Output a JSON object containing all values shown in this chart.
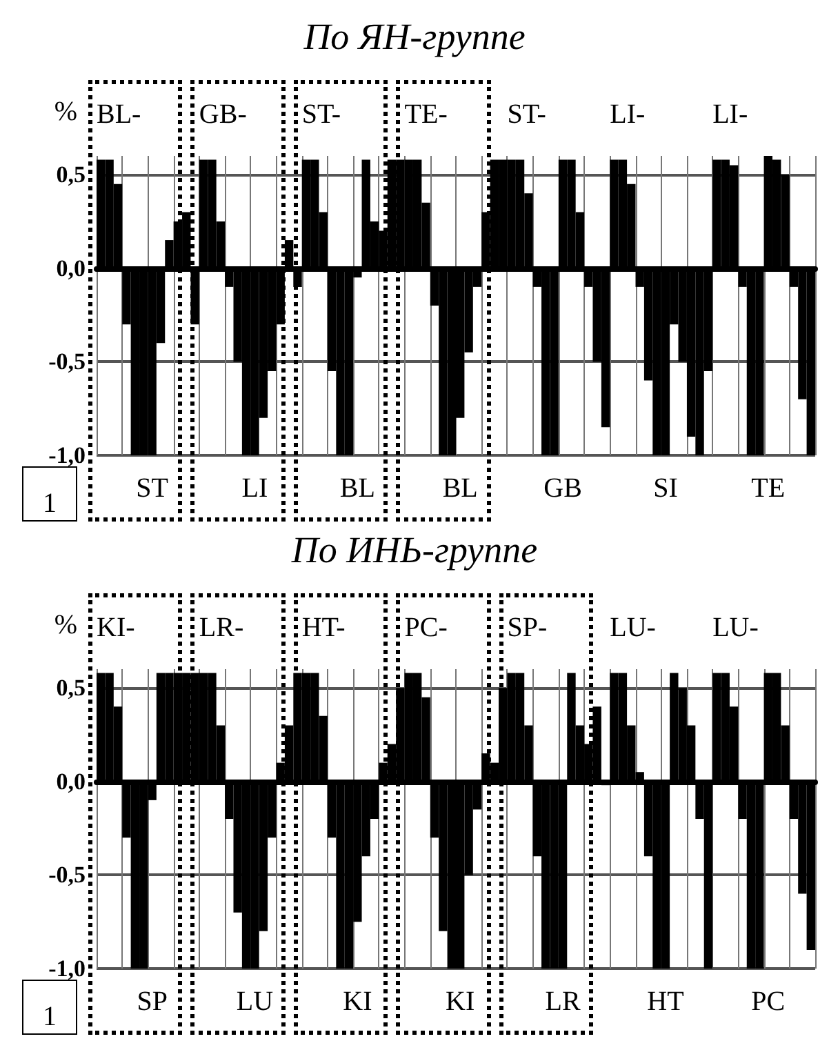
{
  "chart_data": [
    {
      "type": "bar",
      "title": "По ЯН-группе",
      "ylabel": "%",
      "categories": [
        null,
        null,
        null,
        null,
        null,
        null,
        "ST",
        null,
        null,
        null,
        null,
        null,
        null,
        null,
        null,
        null,
        null,
        null,
        "LI",
        null,
        null,
        null,
        null,
        null,
        null,
        null,
        null,
        null,
        null,
        null,
        "BL",
        null,
        null,
        null,
        null,
        null,
        null,
        null,
        null,
        null,
        null,
        null,
        "BL",
        null,
        null,
        null,
        null,
        null,
        null,
        null,
        null,
        null,
        null,
        null,
        "GB",
        null,
        null,
        null,
        null,
        null,
        null,
        null,
        null,
        null,
        null,
        null,
        "SI",
        null,
        null,
        null,
        null,
        null,
        null,
        null,
        null,
        null,
        null,
        null,
        "TE",
        null,
        null,
        null,
        null,
        null
      ],
      "series": [
        {
          "color": "#000000",
          "values": [
            0.58,
            0.58,
            0.45,
            -0.3,
            -1,
            -1,
            -1,
            -0.4,
            0.15,
            0.25,
            0.3,
            -0.3,
            0.58,
            0.58,
            0.25,
            -0.1,
            -0.5,
            -1,
            -1,
            -0.8,
            -0.55,
            -0.3,
            0.15,
            -0.1,
            0.58,
            0.58,
            0.3,
            -0.55,
            -1,
            -1,
            -0.05,
            0.58,
            0.25,
            0.2,
            0.58,
            0.58,
            0.58,
            0.58,
            0.35,
            -0.2,
            -1,
            -1,
            -0.8,
            -0.45,
            -0.1,
            0.3,
            0.58,
            0.58,
            0.58,
            0.58,
            0.4,
            -0.1,
            -1,
            -1,
            0.58,
            0.58,
            0.3,
            -0.1,
            -0.5,
            -0.85,
            0.58,
            0.58,
            0.45,
            -0.1,
            -0.6,
            -1,
            -1,
            -0.3,
            -0.5,
            -0.9,
            -1,
            -0.55,
            0.58,
            0.58,
            0.55,
            -0.1,
            -1,
            -1,
            0.6,
            0.58,
            0.5,
            -0.1,
            -0.7,
            -1
          ]
        }
      ],
      "ylim": [
        -1,
        0.6
      ],
      "yticks": [
        {
          "value": -1,
          "label": "-1,0"
        },
        {
          "value": -0.5,
          "label": "-0,5"
        },
        {
          "value": 0,
          "label": "0,0"
        },
        {
          "value": 0.5,
          "label": "0,5"
        }
      ],
      "grid": true,
      "annotations": [
        "BL-",
        "GB-",
        "ST-",
        "TE-",
        "ST-",
        "LI-",
        "LI-",
        "1"
      ]
    },
    {
      "type": "bar",
      "title": "По ИНЬ-группе",
      "ylabel": "%",
      "categories": [
        null,
        null,
        null,
        null,
        null,
        null,
        "SP",
        null,
        null,
        null,
        null,
        null,
        null,
        null,
        null,
        null,
        null,
        null,
        "LU",
        null,
        null,
        null,
        null,
        null,
        null,
        null,
        null,
        null,
        null,
        null,
        "KI",
        null,
        null,
        null,
        null,
        null,
        null,
        null,
        null,
        null,
        null,
        null,
        "KI",
        null,
        null,
        null,
        null,
        null,
        null,
        null,
        null,
        null,
        null,
        null,
        "LR",
        null,
        null,
        null,
        null,
        null,
        null,
        null,
        null,
        null,
        null,
        null,
        "HT",
        null,
        null,
        null,
        null,
        null,
        null,
        null,
        null,
        null,
        null,
        null,
        "PC",
        null,
        null,
        null,
        null,
        null
      ],
      "series": [
        {
          "color": "#000000",
          "values": [
            0.58,
            0.58,
            0.4,
            -0.3,
            -1,
            -1,
            -0.1,
            0.58,
            0.58,
            0.58,
            0.58,
            0.58,
            0.58,
            0.58,
            0.3,
            -0.2,
            -0.7,
            -1,
            -1,
            -0.8,
            -0.3,
            0.1,
            0.3,
            0.58,
            0.58,
            0.58,
            0.35,
            -0.3,
            -1,
            -1,
            -0.75,
            -0.4,
            -0.2,
            0.1,
            0.2,
            0.5,
            0.58,
            0.58,
            0.45,
            -0.3,
            -0.8,
            -1,
            -1,
            -0.5,
            -0.15,
            0.15,
            0.1,
            0.5,
            0.58,
            0.58,
            0.3,
            -0.4,
            -1,
            -1,
            -1,
            0.58,
            0.3,
            0.2,
            0.4,
            -0.02,
            0.58,
            0.58,
            0.3,
            0.05,
            -0.4,
            -1,
            -1,
            0.58,
            0.5,
            0.3,
            -0.2,
            -1,
            0.58,
            0.58,
            0.4,
            -0.2,
            -1,
            -1,
            0.58,
            0.58,
            0.3,
            -0.2,
            -0.6,
            -0.9
          ]
        }
      ],
      "ylim": [
        -1,
        0.6
      ],
      "yticks": [
        {
          "value": -1,
          "label": "-1,0"
        },
        {
          "value": -0.5,
          "label": "-0,5"
        },
        {
          "value": 0,
          "label": "0,0"
        },
        {
          "value": 0.5,
          "label": "0,5"
        }
      ],
      "grid": true,
      "annotations": [
        "KI-",
        "LR-",
        "HT-",
        "PC-",
        "SP-",
        "LU-",
        "LU-",
        "1"
      ]
    }
  ]
}
